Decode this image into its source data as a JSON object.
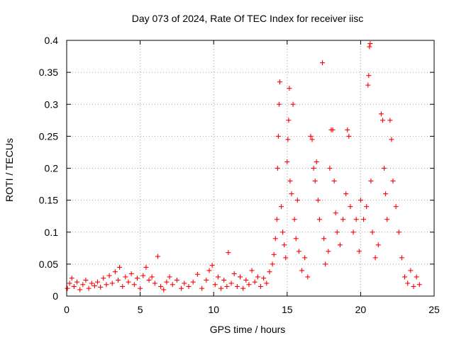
{
  "chart_data": {
    "type": "scatter",
    "title": "Day 073 of 2024, Rate Of TEC Index for receiver iisc",
    "xlabel": "GPS time / hours",
    "ylabel": "ROTI / TECUs",
    "xlim": [
      0,
      25
    ],
    "ylim": [
      0,
      0.4
    ],
    "x_ticks": [
      0,
      5,
      10,
      15,
      20,
      25
    ],
    "x_tick_labels": [
      "0",
      "5",
      "10",
      "15",
      "20",
      "25"
    ],
    "y_ticks": [
      0,
      0.05,
      0.1,
      0.15,
      0.2,
      0.25,
      0.3,
      0.35,
      0.4
    ],
    "y_tick_labels": [
      "0",
      "0.05",
      "0.1",
      "0.15",
      "0.2",
      "0.25",
      "0.3",
      "0.35",
      "0.4"
    ],
    "grid": true,
    "marker": "+",
    "series": [
      {
        "name": "ROTI",
        "color": "#ff0000",
        "points": [
          [
            0.05,
            0.012
          ],
          [
            0.2,
            0.02
          ],
          [
            0.35,
            0.028
          ],
          [
            0.5,
            0.015
          ],
          [
            0.7,
            0.022
          ],
          [
            0.9,
            0.01
          ],
          [
            1.1,
            0.018
          ],
          [
            1.3,
            0.025
          ],
          [
            1.5,
            0.012
          ],
          [
            1.7,
            0.02
          ],
          [
            1.9,
            0.016
          ],
          [
            2.1,
            0.022
          ],
          [
            2.3,
            0.014
          ],
          [
            2.5,
            0.028
          ],
          [
            2.7,
            0.018
          ],
          [
            2.9,
            0.032
          ],
          [
            3.1,
            0.02
          ],
          [
            3.3,
            0.038
          ],
          [
            3.5,
            0.025
          ],
          [
            3.6,
            0.045
          ],
          [
            3.8,
            0.015
          ],
          [
            4.0,
            0.03
          ],
          [
            4.2,
            0.022
          ],
          [
            4.4,
            0.035
          ],
          [
            4.6,
            0.018
          ],
          [
            4.8,
            0.028
          ],
          [
            5.0,
            0.012
          ],
          [
            5.2,
            0.032
          ],
          [
            5.4,
            0.045
          ],
          [
            5.6,
            0.025
          ],
          [
            5.8,
            0.03
          ],
          [
            6.0,
            0.02
          ],
          [
            6.2,
            0.062
          ],
          [
            6.4,
            0.015
          ],
          [
            6.6,
            0.01
          ],
          [
            6.8,
            0.022
          ],
          [
            7.0,
            0.03
          ],
          [
            7.2,
            0.018
          ],
          [
            7.5,
            0.025
          ],
          [
            7.8,
            0.012
          ],
          [
            8.0,
            0.02
          ],
          [
            8.3,
            0.015
          ],
          [
            8.6,
            0.022
          ],
          [
            8.9,
            0.034
          ],
          [
            9.2,
            0.012
          ],
          [
            9.5,
            0.025
          ],
          [
            9.7,
            0.04
          ],
          [
            9.9,
            0.048
          ],
          [
            10.1,
            0.018
          ],
          [
            10.3,
            0.03
          ],
          [
            10.5,
            0.012
          ],
          [
            10.7,
            0.025
          ],
          [
            10.9,
            0.015
          ],
          [
            11.0,
            0.068
          ],
          [
            11.2,
            0.02
          ],
          [
            11.4,
            0.035
          ],
          [
            11.6,
            0.015
          ],
          [
            11.8,
            0.03
          ],
          [
            12.0,
            0.012
          ],
          [
            12.2,
            0.025
          ],
          [
            12.4,
            0.018
          ],
          [
            12.6,
            0.04
          ],
          [
            12.8,
            0.022
          ],
          [
            13.0,
            0.03
          ],
          [
            13.2,
            0.015
          ],
          [
            13.4,
            0.028
          ],
          [
            13.6,
            0.02
          ],
          [
            13.8,
            0.038
          ],
          [
            14.0,
            0.05
          ],
          [
            14.1,
            0.065
          ],
          [
            14.2,
            0.09
          ],
          [
            14.3,
            0.12
          ],
          [
            14.35,
            0.2
          ],
          [
            14.4,
            0.25
          ],
          [
            14.45,
            0.3
          ],
          [
            14.5,
            0.335
          ],
          [
            14.6,
            0.14
          ],
          [
            14.7,
            0.1
          ],
          [
            14.8,
            0.08
          ],
          [
            14.9,
            0.06
          ],
          [
            15.0,
            0.21
          ],
          [
            15.05,
            0.245
          ],
          [
            15.1,
            0.275
          ],
          [
            15.15,
            0.325
          ],
          [
            15.2,
            0.18
          ],
          [
            15.3,
            0.16
          ],
          [
            15.4,
            0.3
          ],
          [
            15.5,
            0.12
          ],
          [
            15.6,
            0.09
          ],
          [
            15.7,
            0.15
          ],
          [
            15.8,
            0.07
          ],
          [
            16.0,
            0.04
          ],
          [
            16.2,
            0.06
          ],
          [
            16.4,
            0.03
          ],
          [
            16.6,
            0.25
          ],
          [
            16.7,
            0.245
          ],
          [
            16.8,
            0.2
          ],
          [
            16.9,
            0.18
          ],
          [
            17.0,
            0.21
          ],
          [
            17.1,
            0.15
          ],
          [
            17.2,
            0.12
          ],
          [
            17.4,
            0.365
          ],
          [
            17.5,
            0.09
          ],
          [
            17.6,
            0.05
          ],
          [
            17.8,
            0.07
          ],
          [
            17.9,
            0.2
          ],
          [
            18.0,
            0.26
          ],
          [
            18.1,
            0.26
          ],
          [
            18.2,
            0.18
          ],
          [
            18.3,
            0.13
          ],
          [
            18.4,
            0.1
          ],
          [
            18.6,
            0.08
          ],
          [
            18.8,
            0.12
          ],
          [
            19.0,
            0.16
          ],
          [
            19.1,
            0.26
          ],
          [
            19.2,
            0.25
          ],
          [
            19.3,
            0.14
          ],
          [
            19.5,
            0.1
          ],
          [
            19.7,
            0.12
          ],
          [
            19.9,
            0.07
          ],
          [
            20.0,
            0.15
          ],
          [
            20.2,
            0.12
          ],
          [
            20.4,
            0.14
          ],
          [
            20.5,
            0.33
          ],
          [
            20.55,
            0.345
          ],
          [
            20.6,
            0.39
          ],
          [
            20.65,
            0.395
          ],
          [
            20.7,
            0.18
          ],
          [
            20.8,
            0.1
          ],
          [
            21.0,
            0.06
          ],
          [
            21.2,
            0.08
          ],
          [
            21.4,
            0.285
          ],
          [
            21.5,
            0.275
          ],
          [
            21.6,
            0.2
          ],
          [
            21.7,
            0.16
          ],
          [
            21.8,
            0.12
          ],
          [
            22.0,
            0.275
          ],
          [
            22.1,
            0.245
          ],
          [
            22.2,
            0.18
          ],
          [
            22.4,
            0.14
          ],
          [
            22.6,
            0.1
          ],
          [
            22.8,
            0.06
          ],
          [
            23.0,
            0.03
          ],
          [
            23.2,
            0.02
          ],
          [
            23.4,
            0.04
          ],
          [
            23.6,
            0.015
          ],
          [
            23.8,
            0.03
          ],
          [
            24.0,
            0.018
          ]
        ]
      }
    ]
  }
}
